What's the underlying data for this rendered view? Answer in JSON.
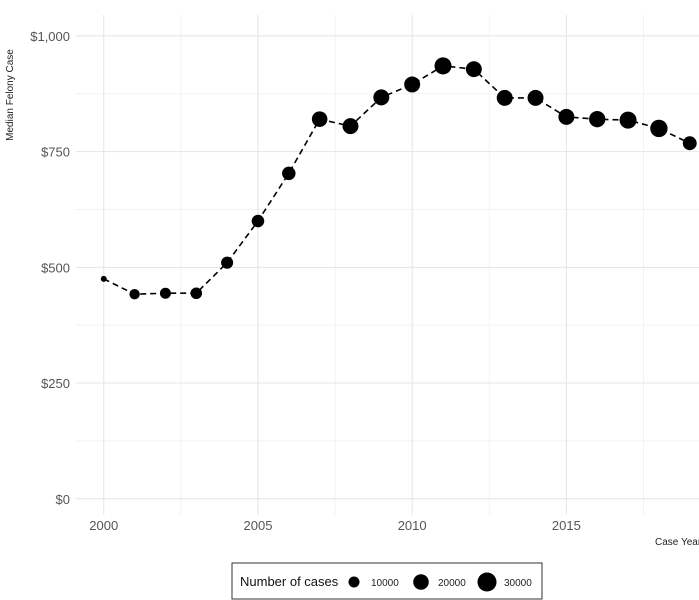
{
  "chart_data": {
    "type": "scatter",
    "connected": true,
    "line_style": "dashed",
    "xlabel": "Case Year",
    "ylabel": "Median Felony Case",
    "xlim": [
      1999.1,
      2019.3
    ],
    "ylim": [
      -35,
      1045
    ],
    "x_ticks": [
      2000,
      2005,
      2010,
      2015
    ],
    "x_tick_labels": [
      "2000",
      "2005",
      "2010",
      "2015"
    ],
    "y_ticks": [
      0,
      250,
      500,
      750,
      1000
    ],
    "y_tick_labels": [
      "$0",
      "$250",
      "$500",
      "$750",
      "$1,000"
    ],
    "grid": true,
    "point_color": "#000000",
    "x": [
      2000,
      2001,
      2002,
      2003,
      2004,
      2005,
      2006,
      2007,
      2008,
      2009,
      2010,
      2011,
      2012,
      2013,
      2014,
      2015,
      2016,
      2017,
      2018,
      2019
    ],
    "y": [
      475,
      442,
      444,
      444,
      510,
      600,
      703,
      820,
      805,
      867,
      895,
      935,
      928,
      866,
      866,
      825,
      820,
      818,
      800,
      768
    ],
    "cases": [
      3000,
      9000,
      10000,
      11000,
      12000,
      13000,
      15000,
      20000,
      21000,
      21000,
      21000,
      24000,
      21000,
      21000,
      21000,
      21000,
      22000,
      24000,
      25000,
      16000
    ],
    "legend": {
      "title": "Number of cases",
      "position": "bottom",
      "entries": [
        {
          "label": "10000",
          "value": 10000
        },
        {
          "label": "20000",
          "value": 20000
        },
        {
          "label": "30000",
          "value": 30000
        }
      ]
    }
  }
}
